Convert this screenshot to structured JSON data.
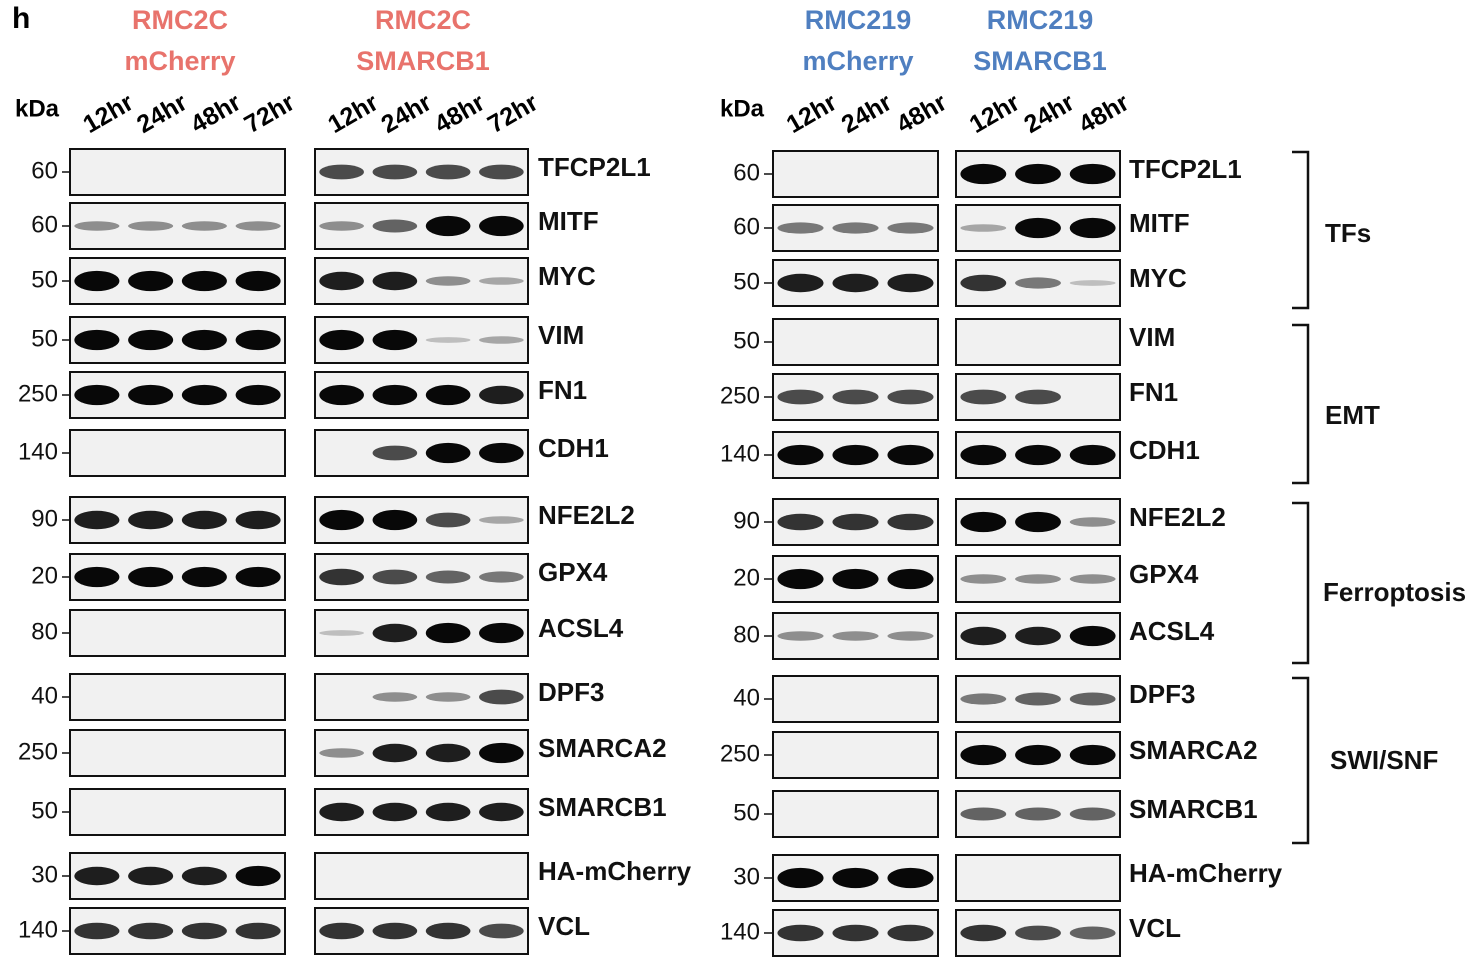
{
  "panel_label": "h",
  "left": {
    "kda_label": "kDa",
    "groups": [
      {
        "line1": "RMC2C",
        "line2": "mCherry",
        "lanes": [
          "12hr",
          "24hr",
          "48hr",
          "72hr"
        ]
      },
      {
        "line1": "RMC2C",
        "line2": "SMARCB1",
        "lanes": [
          "12hr",
          "24hr",
          "48hr",
          "72hr"
        ]
      }
    ],
    "rows": [
      {
        "kda": "60",
        "protein": "TFCP2L1"
      },
      {
        "kda": "60",
        "protein": "MITF"
      },
      {
        "kda": "50",
        "protein": "MYC"
      },
      {
        "kda": "50",
        "protein": "VIM"
      },
      {
        "kda": "250",
        "protein": "FN1"
      },
      {
        "kda": "140",
        "protein": "CDH1"
      },
      {
        "kda": "90",
        "protein": "NFE2L2"
      },
      {
        "kda": "20",
        "protein": "GPX4"
      },
      {
        "kda": "80",
        "protein": "ACSL4"
      },
      {
        "kda": "40",
        "protein": "DPF3"
      },
      {
        "kda": "250",
        "protein": "SMARCA2"
      },
      {
        "kda": "50",
        "protein": "SMARCB1"
      },
      {
        "kda": "30",
        "protein": "HA-mCherry"
      },
      {
        "kda": "140",
        "protein": "VCL"
      }
    ]
  },
  "right": {
    "kda_label": "kDa",
    "groups": [
      {
        "line1": "RMC219",
        "line2": "mCherry",
        "lanes": [
          "12hr",
          "24hr",
          "48hr"
        ]
      },
      {
        "line1": "RMC219",
        "line2": "SMARCB1",
        "lanes": [
          "12hr",
          "24hr",
          "48hr"
        ]
      }
    ],
    "rows": [
      {
        "kda": "60",
        "protein": "TFCP2L1"
      },
      {
        "kda": "60",
        "protein": "MITF"
      },
      {
        "kda": "50",
        "protein": "MYC"
      },
      {
        "kda": "50",
        "protein": "VIM"
      },
      {
        "kda": "250",
        "protein": "FN1"
      },
      {
        "kda": "140",
        "protein": "CDH1"
      },
      {
        "kda": "90",
        "protein": "NFE2L2"
      },
      {
        "kda": "20",
        "protein": "GPX4"
      },
      {
        "kda": "80",
        "protein": "ACSL4"
      },
      {
        "kda": "40",
        "protein": "DPF3"
      },
      {
        "kda": "250",
        "protein": "SMARCA2"
      },
      {
        "kda": "50",
        "protein": "SMARCB1"
      },
      {
        "kda": "30",
        "protein": "HA-mCherry"
      },
      {
        "kda": "140",
        "protein": "VCL"
      }
    ]
  },
  "categories": [
    {
      "label": "TFs"
    },
    {
      "label": "EMT"
    },
    {
      "label": "Ferroptosis"
    },
    {
      "label": "SWI/SNF"
    }
  ]
}
